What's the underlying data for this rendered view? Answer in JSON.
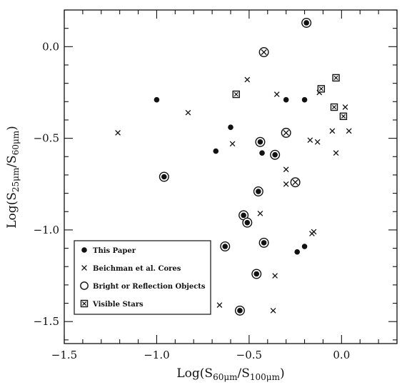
{
  "chart_data": {
    "type": "scatter",
    "xlabel": {
      "base": "Log(S",
      "sub1": "60μm",
      "mid": "/S",
      "sub2": "100μm",
      "end": ")"
    },
    "ylabel": {
      "base": "Log(S",
      "sub1": "25μm",
      "mid": "/S",
      "sub2": "60μm",
      "end": ")"
    },
    "xlim": [
      -1.5,
      0.3
    ],
    "ylim": [
      -1.62,
      0.2
    ],
    "xticks": [
      {
        "v": -1.5,
        "label": "−1.5"
      },
      {
        "v": -1.0,
        "label": "−1.0"
      },
      {
        "v": -0.5,
        "label": "−0.5"
      },
      {
        "v": 0.0,
        "label": "0.0"
      }
    ],
    "yticks": [
      {
        "v": 0.0,
        "label": "0.0"
      },
      {
        "v": -0.5,
        "label": "−0.5"
      },
      {
        "v": -1.0,
        "label": "−1.0"
      },
      {
        "v": -1.5,
        "label": "−1.5"
      }
    ],
    "grid": false,
    "legend": {
      "position": "bottom-left",
      "entries": [
        {
          "marker": "dot",
          "label": "This Paper"
        },
        {
          "marker": "cross",
          "label": "Beichman et al. Cores"
        },
        {
          "marker": "circle",
          "label": "Bright or Reflection Objects"
        },
        {
          "marker": "square",
          "label": "Visible Stars"
        }
      ]
    },
    "series": [
      {
        "name": "This Paper",
        "marker": "dot",
        "points": [
          [
            -1.0,
            -0.29
          ],
          [
            -0.6,
            -0.44
          ],
          [
            -0.68,
            -0.57
          ],
          [
            -0.43,
            -0.58
          ],
          [
            -0.3,
            -0.29
          ],
          [
            -0.2,
            -0.29
          ],
          [
            -0.62,
            -1.09
          ],
          [
            -0.24,
            -1.12
          ],
          [
            -0.2,
            -1.09
          ]
        ]
      },
      {
        "name": "Beichman et al. Cores",
        "marker": "cross",
        "points": [
          [
            -1.21,
            -0.47
          ],
          [
            -0.83,
            -0.36
          ],
          [
            -0.51,
            -0.18
          ],
          [
            -0.59,
            -0.53
          ],
          [
            -0.35,
            -0.26
          ],
          [
            -0.12,
            -0.25
          ],
          [
            -0.3,
            -0.67
          ],
          [
            -0.3,
            -0.75
          ],
          [
            -0.17,
            -0.51
          ],
          [
            -0.13,
            -0.52
          ],
          [
            -0.05,
            -0.46
          ],
          [
            -0.03,
            -0.58
          ],
          [
            0.02,
            -0.33
          ],
          [
            0.04,
            -0.46
          ],
          [
            -0.44,
            -0.91
          ],
          [
            -0.16,
            -1.02
          ],
          [
            -0.15,
            -1.01
          ],
          [
            -0.36,
            -1.25
          ],
          [
            -0.37,
            -1.44
          ],
          [
            -0.66,
            -1.41
          ]
        ]
      },
      {
        "name": "Bright or Reflection Objects",
        "marker": "circle",
        "points": [
          [
            -0.19,
            0.13
          ],
          [
            -0.96,
            -0.71
          ],
          [
            -0.44,
            -0.52
          ],
          [
            -0.36,
            -0.59
          ],
          [
            -0.45,
            -0.79
          ],
          [
            -0.53,
            -0.92
          ],
          [
            -0.51,
            -0.96
          ],
          [
            -0.63,
            -1.09
          ],
          [
            -0.42,
            -1.07
          ],
          [
            -0.46,
            -1.24
          ],
          [
            -0.55,
            -1.44
          ]
        ]
      },
      {
        "name": "Bright or Reflection Objects (crossed)",
        "marker": "circle-x",
        "points": [
          [
            -0.42,
            -0.03
          ],
          [
            -0.3,
            -0.47
          ],
          [
            -0.25,
            -0.74
          ]
        ]
      },
      {
        "name": "Visible Stars",
        "marker": "square",
        "points": [
          [
            -0.57,
            -0.26
          ],
          [
            -0.11,
            -0.23
          ],
          [
            -0.03,
            -0.17
          ],
          [
            -0.04,
            -0.33
          ],
          [
            0.01,
            -0.38
          ]
        ]
      }
    ]
  }
}
